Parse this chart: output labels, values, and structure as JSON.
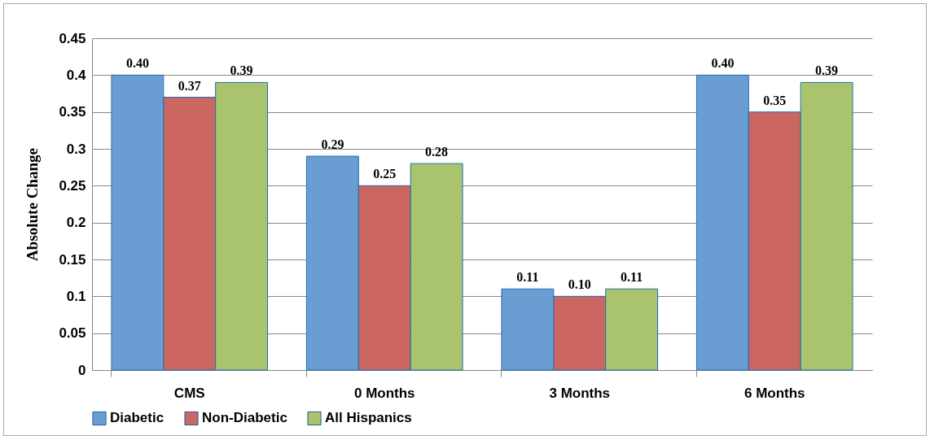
{
  "chart_data": {
    "type": "bar",
    "ylabel": "Absolute Change",
    "categories": [
      "CMS",
      "0 Months",
      "3 Months",
      "6 Months"
    ],
    "series": [
      {
        "name": "Diabetic",
        "color": "#6a9ed3",
        "values": [
          0.4,
          0.29,
          0.11,
          0.4
        ],
        "value_labels": [
          "0.40",
          "0.29",
          "0.11",
          "0.40"
        ]
      },
      {
        "name": "Non-Diabetic",
        "color": "#cc6660",
        "values": [
          0.37,
          0.25,
          0.1,
          0.35
        ],
        "value_labels": [
          "0.37",
          "0.25",
          "0.10",
          "0.35"
        ]
      },
      {
        "name": "All Hispanics",
        "color": "#a9c46c",
        "values": [
          0.39,
          0.28,
          0.11,
          0.39
        ],
        "value_labels": [
          "0.39",
          "0.28",
          "0.11",
          "0.39"
        ]
      }
    ],
    "ylim": [
      0,
      0.45
    ],
    "yticks": [
      0,
      0.05,
      0.1,
      0.15,
      0.2,
      0.25,
      0.3,
      0.35,
      0.4,
      0.45
    ],
    "grid": "y",
    "legend": "bottom"
  }
}
